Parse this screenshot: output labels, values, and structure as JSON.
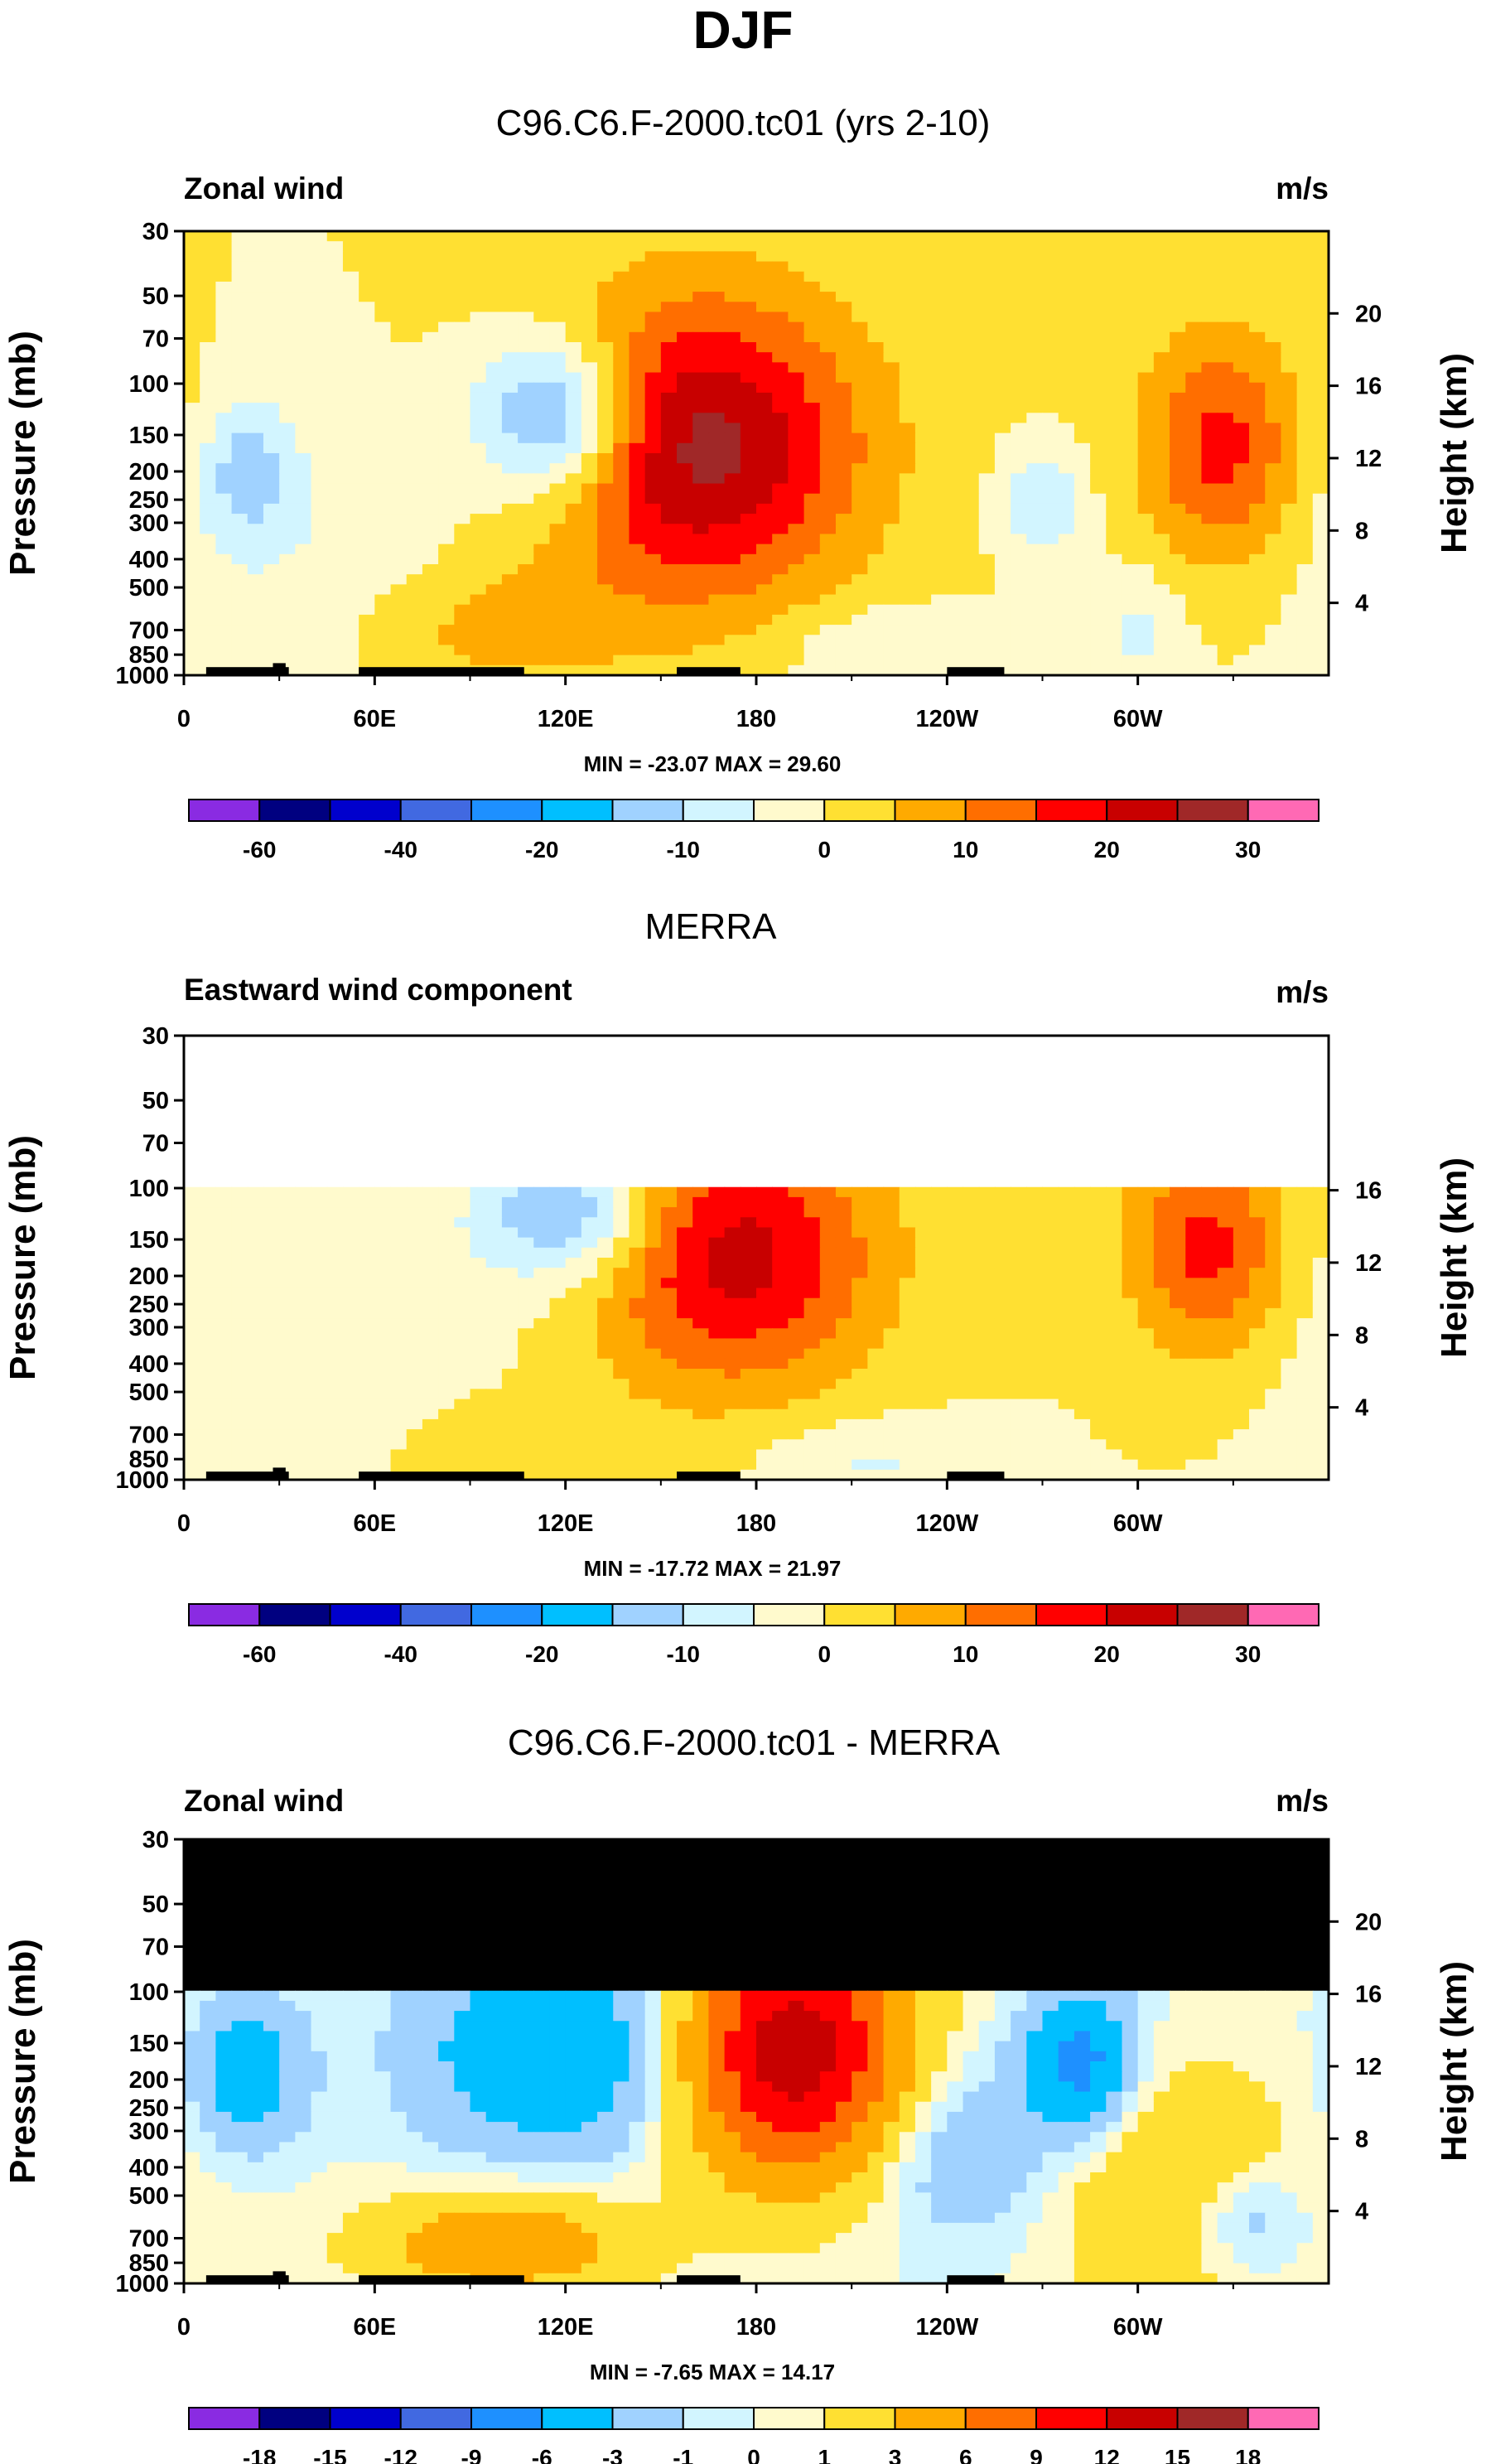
{
  "figure": {
    "title": "DJF",
    "units": "m/s"
  },
  "chart_data": [
    {
      "type": "heatmap",
      "title": "C96.C6.F-2000.tc01 (yrs 2-10)",
      "left_string": "Zonal wind",
      "right_string": "m/s",
      "ylabel": "Pressure (mb)",
      "y2label": "Height (km)",
      "pressure_ticks": [
        "30",
        "50",
        "70",
        "100",
        "150",
        "200",
        "250",
        "300",
        "400",
        "500",
        "700",
        "850",
        "1000"
      ],
      "pressure_values": [
        30,
        50,
        70,
        100,
        150,
        200,
        250,
        300,
        400,
        500,
        700,
        850,
        1000
      ],
      "height_ticks": [
        "20",
        "16",
        "12",
        "8",
        "4"
      ],
      "height_values": [
        20,
        16,
        12,
        8,
        4
      ],
      "xticks": [
        "0",
        "60E",
        "120E",
        "180",
        "120W",
        "60W"
      ],
      "xtick_values": [
        0,
        60,
        120,
        180,
        240,
        300
      ],
      "xlim": [
        0,
        360
      ],
      "ylim": [
        1000,
        30
      ],
      "min": "-23.07",
      "max": "29.60",
      "minmax_text": "MIN = -23.07  MAX =  29.60",
      "colorbar_labels": [
        "-60",
        "-40",
        "-20",
        "-10",
        "0",
        "10",
        "20",
        "30"
      ],
      "levels": [
        -70,
        -60,
        -50,
        -40,
        -30,
        -20,
        -15,
        -10,
        -5,
        0,
        5,
        10,
        15,
        20,
        25,
        30
      ],
      "features": [
        {
          "name": "subtropical-jet-asia",
          "lon": 160,
          "p": 165,
          "value": 29.6
        },
        {
          "name": "jet-atlantic",
          "lon": 325,
          "p": 160,
          "value": 22
        },
        {
          "name": "easterly-core",
          "lon": 118,
          "p": 125,
          "value": -23.07
        }
      ]
    },
    {
      "type": "heatmap",
      "title": "MERRA",
      "left_string": "Eastward wind component",
      "right_string": "m/s",
      "ylabel": "Pressure (mb)",
      "y2label": "Height (km)",
      "pressure_ticks": [
        "30",
        "50",
        "70",
        "100",
        "150",
        "200",
        "250",
        "300",
        "400",
        "500",
        "700",
        "850",
        "1000"
      ],
      "pressure_values": [
        30,
        50,
        70,
        100,
        150,
        200,
        250,
        300,
        400,
        500,
        700,
        850,
        1000
      ],
      "height_ticks": [
        "16",
        "12",
        "8",
        "4"
      ],
      "height_values": [
        16,
        12,
        8,
        4
      ],
      "xticks": [
        "0",
        "60E",
        "120E",
        "180",
        "120W",
        "60W"
      ],
      "xtick_values": [
        0,
        60,
        120,
        180,
        240,
        300
      ],
      "xlim": [
        0,
        360
      ],
      "ylim": [
        1000,
        30
      ],
      "data_top_pressure": 100,
      "min": "-17.72",
      "max": "21.97",
      "minmax_text": "MIN = -17.72  MAX =  21.97",
      "colorbar_labels": [
        "-60",
        "-40",
        "-20",
        "-10",
        "0",
        "10",
        "20",
        "30"
      ],
      "levels": [
        -70,
        -60,
        -50,
        -40,
        -30,
        -20,
        -15,
        -10,
        -5,
        0,
        5,
        10,
        15,
        20,
        25,
        30
      ]
    },
    {
      "type": "heatmap",
      "title": "C96.C6.F-2000.tc01 - MERRA",
      "left_string": "Zonal wind",
      "right_string": "m/s",
      "ylabel": "Pressure (mb)",
      "y2label": "Height (km)",
      "pressure_ticks": [
        "30",
        "50",
        "70",
        "100",
        "150",
        "200",
        "250",
        "300",
        "400",
        "500",
        "700",
        "850",
        "1000"
      ],
      "pressure_values": [
        30,
        50,
        70,
        100,
        150,
        200,
        250,
        300,
        400,
        500,
        700,
        850,
        1000
      ],
      "height_ticks": [
        "20",
        "16",
        "12",
        "8",
        "4"
      ],
      "height_values": [
        20,
        16,
        12,
        8,
        4
      ],
      "xticks": [
        "0",
        "60E",
        "120E",
        "180",
        "120W",
        "60W"
      ],
      "xtick_values": [
        0,
        60,
        120,
        180,
        240,
        300
      ],
      "xlim": [
        0,
        360
      ],
      "ylim": [
        1000,
        30
      ],
      "masked_above_pressure": 100,
      "min": "-7.65",
      "max": "14.17",
      "minmax_text": "MIN = -7.65  MAX =  14.17",
      "colorbar_labels": [
        "-18",
        "-15",
        "-12",
        "-9",
        "-6",
        "-3",
        "-1",
        "0",
        "1",
        "3",
        "6",
        "9",
        "12",
        "15",
        "18"
      ],
      "levels": [
        -21,
        -18,
        -15,
        -12,
        -9,
        -6,
        -3,
        -1,
        0,
        1,
        3,
        6,
        9,
        12,
        15,
        18
      ]
    }
  ],
  "colors": {
    "palette": [
      "#8a2be2",
      "#000080",
      "#0000cd",
      "#4169e1",
      "#1e90ff",
      "#00bfff",
      "#a0d2ff",
      "#d2f5ff",
      "#fffacd",
      "#ffe032",
      "#ffaa00",
      "#ff6e00",
      "#ff0000",
      "#c80000",
      "#a02828",
      "#ff69b4"
    ],
    "missing": "#ffffff",
    "mask": "#000000",
    "topography": "#000000"
  }
}
